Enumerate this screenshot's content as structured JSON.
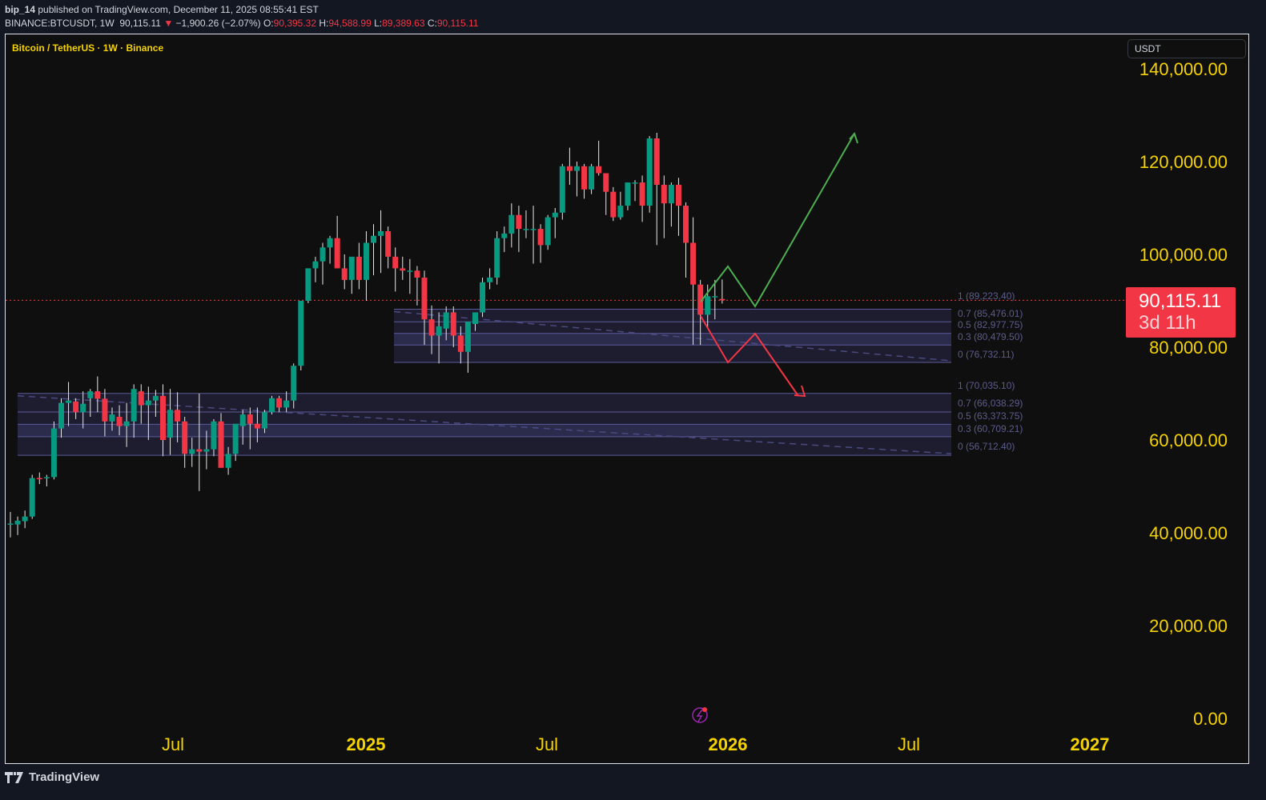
{
  "header": {
    "publisher": "bip_14",
    "published_text": "published on TradingView.com, December 11, 2025 08:55:41 EST",
    "symbol": "BINANCE:BTCUSDT, 1W",
    "last": "90,115.11",
    "change_arrow": "▼",
    "change": "−1,900.26 (−2.07%)",
    "o_label": "O:",
    "o": "90,395.32",
    "h_label": "H:",
    "h": "94,588.99",
    "l_label": "L:",
    "l": "89,389.63",
    "c_label": "C:",
    "c": "90,115.11"
  },
  "chart": {
    "legend": "Bitcoin / TetherUS · 1W · Binance",
    "currency": "USDT",
    "price_tag": {
      "price": "90,115.11",
      "countdown": "3d 11h"
    },
    "colors": {
      "up": "#089981",
      "down": "#f23645",
      "axis_text": "#f5d300",
      "fib_zone": "#3a3a6a",
      "fib_line": "#5b5b9a",
      "bull_path": "#4caf50",
      "bear_path": "#f23645",
      "background": "#0f0f0f"
    }
  },
  "footer": {
    "brand": "TradingView"
  },
  "chart_data": {
    "type": "candlestick",
    "title": "Bitcoin / TetherUS · 1W · Binance",
    "ylabel": "USDT",
    "ylim": [
      0,
      140000
    ],
    "y_ticks": [
      "140,000.00",
      "120,000.00",
      "100,000.00",
      "80,000.00",
      "60,000.00",
      "40,000.00",
      "20,000.00",
      "0.00"
    ],
    "x_ticks": [
      "Jul",
      "2025",
      "Jul",
      "2026",
      "Jul",
      "2027"
    ],
    "last_price": 90115.11,
    "fib_zones": [
      {
        "levels": [
          {
            "label": "1 (89,223.40)",
            "value": 89223.4
          },
          {
            "label": "0.7 (85,476.01)",
            "value": 85476.01
          },
          {
            "label": "0.5 (82,977.75)",
            "value": 82977.75
          },
          {
            "label": "0.3 (80,479.50)",
            "value": 80479.5
          },
          {
            "label": "0 (76,732.11)",
            "value": 76732.11
          }
        ]
      },
      {
        "levels": [
          {
            "label": "1 (70,035.10)",
            "value": 70035.1
          },
          {
            "label": "0.7 (66,038.29)",
            "value": 66038.29
          },
          {
            "label": "0.5 (63,373.75)",
            "value": 63373.75
          },
          {
            "label": "0.3 (60,709.21)",
            "value": 60709.21
          },
          {
            "label": "0 (56,712.40)",
            "value": 56712.4
          }
        ]
      }
    ],
    "projections": [
      {
        "name": "bullish",
        "points_price": [
          90115,
          97000,
          88500,
          126000
        ]
      },
      {
        "name": "bearish",
        "points_price": [
          87000,
          76500,
          82000,
          69000
        ]
      }
    ],
    "candles": [
      [
        42000,
        44500,
        39000,
        42000
      ],
      [
        41800,
        43500,
        39500,
        42600
      ],
      [
        42500,
        44800,
        41000,
        43500
      ],
      [
        43500,
        52500,
        43000,
        51800
      ],
      [
        51800,
        53000,
        50500,
        51700
      ],
      [
        51800,
        52500,
        50000,
        52000
      ],
      [
        52000,
        64000,
        51500,
        62500
      ],
      [
        62500,
        69000,
        60500,
        68000
      ],
      [
        68000,
        72500,
        63000,
        68500
      ],
      [
        68300,
        69000,
        64500,
        66000
      ],
      [
        66000,
        70500,
        62500,
        67800
      ],
      [
        69000,
        71000,
        65000,
        70500
      ],
      [
        70500,
        73700,
        66000,
        68900
      ],
      [
        68900,
        71000,
        60800,
        64000
      ],
      [
        64000,
        67000,
        62000,
        65500
      ],
      [
        65000,
        67500,
        61000,
        63000
      ],
      [
        63000,
        68000,
        58500,
        64000
      ],
      [
        64000,
        72000,
        60500,
        71000
      ],
      [
        70500,
        72000,
        63500,
        67500
      ],
      [
        67500,
        71500,
        60000,
        68500
      ],
      [
        68500,
        70800,
        65000,
        69500
      ],
      [
        69500,
        72000,
        56500,
        60000
      ],
      [
        60500,
        71000,
        56800,
        66500
      ],
      [
        66500,
        70300,
        59500,
        64000
      ],
      [
        64000,
        65000,
        54000,
        57000
      ],
      [
        57000,
        60500,
        54200,
        58000
      ],
      [
        58000,
        70000,
        49000,
        57500
      ],
      [
        57500,
        62000,
        53700,
        58000
      ],
      [
        58000,
        64500,
        56500,
        64000
      ],
      [
        64000,
        65800,
        56000,
        54000
      ],
      [
        54000,
        58500,
        52500,
        57000
      ],
      [
        57000,
        62500,
        55500,
        63500
      ],
      [
        63000,
        66500,
        59000,
        65500
      ],
      [
        65500,
        67000,
        58000,
        63500
      ],
      [
        63500,
        67000,
        59500,
        62500
      ],
      [
        62500,
        66500,
        61500,
        66000
      ],
      [
        66000,
        69500,
        65500,
        69000
      ],
      [
        69000,
        69500,
        66000,
        67000
      ],
      [
        67000,
        70500,
        66000,
        68500
      ],
      [
        68500,
        76500,
        66800,
        76000
      ],
      [
        76000,
        80800,
        75000,
        90000
      ],
      [
        90000,
        93500,
        89500,
        97000
      ],
      [
        97000,
        99500,
        94000,
        98500
      ],
      [
        98500,
        102500,
        93500,
        101500
      ],
      [
        101500,
        104000,
        98000,
        103500
      ],
      [
        103500,
        108300,
        97000,
        97000
      ],
      [
        97000,
        100000,
        92500,
        94500
      ],
      [
        94500,
        99000,
        91500,
        99500
      ],
      [
        99500,
        102500,
        92500,
        94500
      ],
      [
        94500,
        105000,
        90000,
        102500
      ],
      [
        102500,
        106500,
        95500,
        104000
      ],
      [
        104000,
        109500,
        96000,
        105000
      ],
      [
        105000,
        106000,
        97000,
        99500
      ],
      [
        99500,
        101500,
        92000,
        97000
      ],
      [
        97000,
        99500,
        94500,
        96500
      ],
      [
        96500,
        99000,
        91500,
        96500
      ],
      [
        96500,
        97500,
        89000,
        95000
      ],
      [
        95000,
        96500,
        80500,
        86000
      ],
      [
        86000,
        89000,
        78500,
        82500
      ],
      [
        82500,
        87500,
        76500,
        84500
      ],
      [
        84000,
        88800,
        81500,
        87500
      ],
      [
        87500,
        88800,
        80000,
        82500
      ],
      [
        82500,
        84500,
        76500,
        79000
      ],
      [
        79000,
        85500,
        74500,
        85500
      ],
      [
        85000,
        87000,
        83500,
        87500
      ],
      [
        87500,
        95000,
        86500,
        94000
      ],
      [
        94000,
        97000,
        92500,
        95000
      ],
      [
        95000,
        105000,
        93500,
        103500
      ],
      [
        103500,
        106000,
        100500,
        104500
      ],
      [
        104500,
        111000,
        101500,
        108500
      ],
      [
        108500,
        110500,
        100500,
        105500
      ],
      [
        105500,
        109500,
        103500,
        105500
      ],
      [
        105500,
        110500,
        98000,
        105500
      ],
      [
        105500,
        106500,
        98200,
        102000
      ],
      [
        102000,
        108500,
        101000,
        108000
      ],
      [
        108000,
        110000,
        103500,
        109000
      ],
      [
        109000,
        119500,
        107500,
        119000
      ],
      [
        119000,
        123000,
        115000,
        118000
      ],
      [
        118000,
        120000,
        112500,
        119000
      ],
      [
        119000,
        119500,
        112000,
        114000
      ],
      [
        114000,
        119500,
        113000,
        119000
      ],
      [
        119000,
        124500,
        117000,
        117500
      ],
      [
        117500,
        117500,
        108500,
        113500
      ],
      [
        113500,
        114500,
        107200,
        108000
      ],
      [
        108000,
        113500,
        107500,
        110500
      ],
      [
        110500,
        115500,
        109500,
        115500
      ],
      [
        115500,
        116000,
        111500,
        115500
      ],
      [
        115500,
        117000,
        107000,
        110500
      ],
      [
        110500,
        125500,
        109000,
        125000
      ],
      [
        125000,
        126200,
        102000,
        115000
      ],
      [
        115000,
        117000,
        103500,
        111000
      ],
      [
        111000,
        115500,
        106000,
        115000
      ],
      [
        115000,
        116500,
        104000,
        110500
      ],
      [
        110500,
        111200,
        95000,
        102500
      ],
      [
        102500,
        108000,
        80500,
        93500
      ],
      [
        93500,
        94500,
        80500,
        87000
      ],
      [
        87000,
        93500,
        84000,
        91000
      ],
      [
        91000,
        94500,
        86000,
        91000
      ],
      [
        90400,
        94600,
        89400,
        90100
      ]
    ]
  }
}
